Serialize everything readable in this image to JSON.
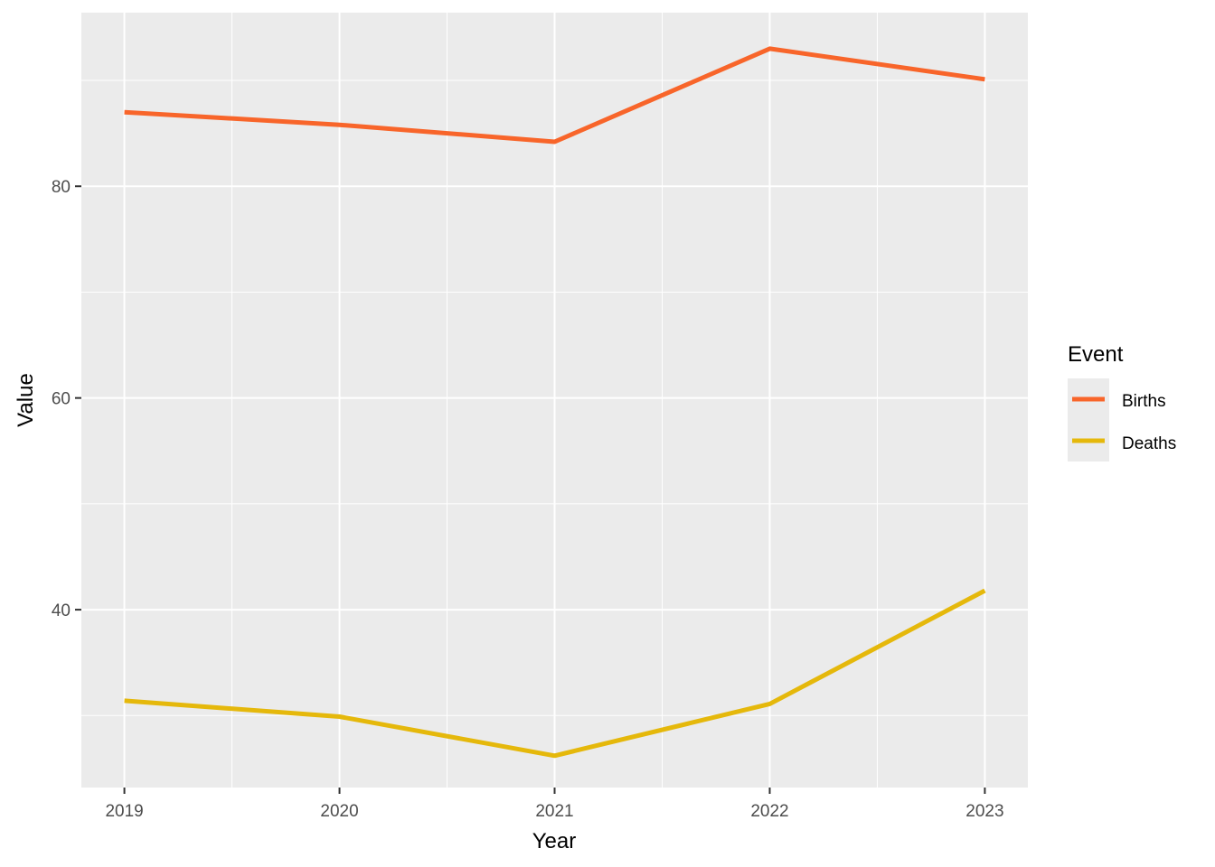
{
  "chart_data": {
    "type": "line",
    "x": [
      2019,
      2020,
      2021,
      2022,
      2023
    ],
    "x_ticks": [
      "2019",
      "2020",
      "2021",
      "2022",
      "2023"
    ],
    "xlim": [
      2018.8,
      2023.2
    ],
    "ylim": [
      23.2,
      96.4
    ],
    "y_ticks": [
      40,
      60,
      80
    ],
    "y_tick_labels": [
      "40",
      "60",
      "80"
    ],
    "xlabel": "Year",
    "ylabel": "Value",
    "grid": true,
    "panel_background": "#ebebeb",
    "legend": {
      "title": "Event",
      "position": "right",
      "items": [
        "Births",
        "Deaths"
      ]
    },
    "series": [
      {
        "name": "Births",
        "color": "#f8652a",
        "values": [
          87.0,
          85.8,
          84.2,
          93.0,
          90.1
        ]
      },
      {
        "name": "Deaths",
        "color": "#e5b80b",
        "values": [
          31.4,
          29.9,
          26.2,
          31.1,
          41.8
        ]
      }
    ]
  }
}
